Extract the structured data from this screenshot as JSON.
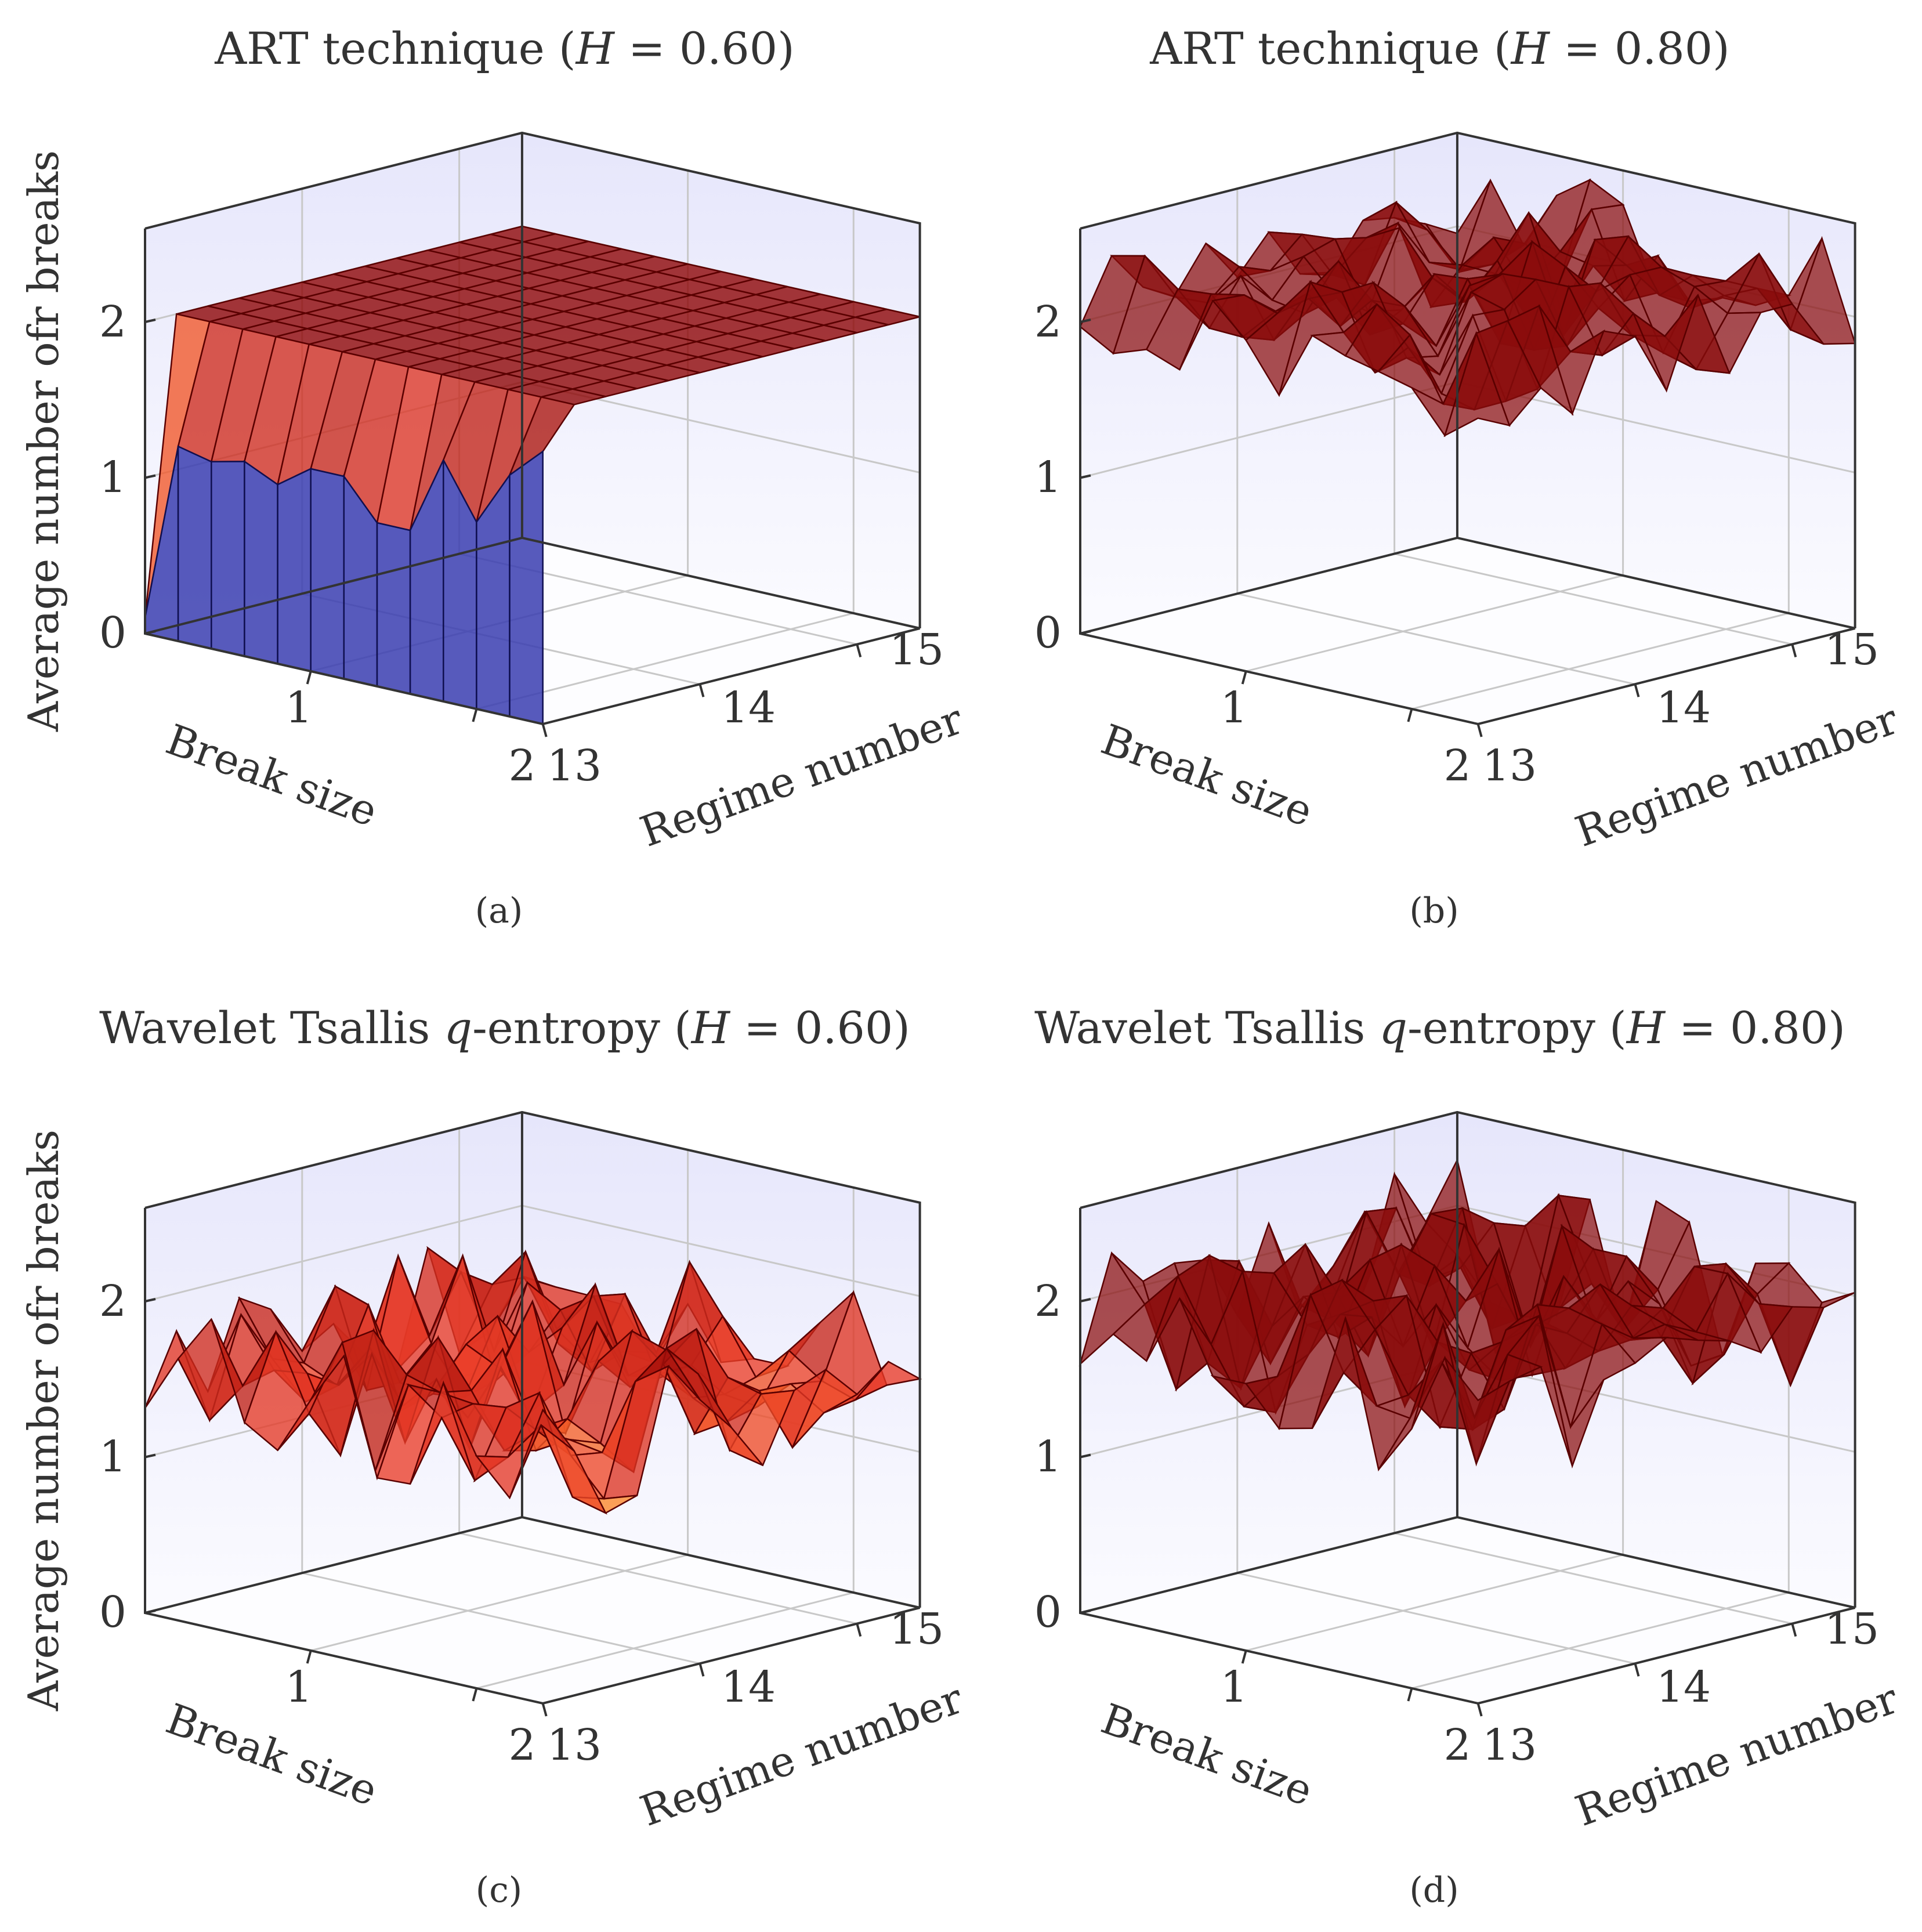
{
  "figure": {
    "ylabel": "Average number ofr breaks",
    "xlabel": "Break size",
    "zlabel": "Regime number"
  },
  "chart_data": [
    {
      "type": "surface3d",
      "title": "ART technique (H = 0.60)",
      "title_plain": "ART technique (",
      "title_h": "H",
      "title_value": " = 0.60)",
      "caption": "(a)",
      "x_axis": {
        "label": "Break size",
        "range": [
          0,
          2.4
        ],
        "ticks": [
          1,
          2
        ],
        "tick_labels": [
          "1",
          "2"
        ]
      },
      "z_axis": {
        "label": "Regime number",
        "range": [
          13,
          15.4
        ],
        "ticks": [
          13,
          14,
          15
        ],
        "tick_labels": [
          "13",
          "14",
          "15"
        ]
      },
      "y_axis": {
        "label": "Average number ofr breaks",
        "range": [
          0,
          2.6
        ],
        "ticks": [
          0,
          1,
          2
        ],
        "tick_labels": [
          "0",
          "1",
          "2"
        ]
      },
      "surface": {
        "x": [
          0,
          0.2,
          0.4,
          0.6,
          0.8,
          1.0,
          1.2,
          1.4,
          1.6,
          1.8,
          2.0,
          2.2,
          2.4
        ],
        "z": [
          13.0,
          13.2,
          13.4,
          13.6,
          13.8,
          14.0,
          14.2,
          14.4,
          14.6,
          14.8,
          15.0,
          15.2,
          15.4
        ],
        "first_row_values": [
          0.1,
          1.25,
          1.2,
          1.25,
          1.15,
          1.3,
          1.3,
          1.05,
          1.05,
          1.55,
          1.2,
          1.55,
          1.75
        ],
        "plateau": 2.0,
        "colormap": "hot"
      }
    },
    {
      "type": "surface3d",
      "title": "ART technique (H = 0.80)",
      "title_plain": "ART technique (",
      "title_h": "H",
      "title_value": " = 0.80)",
      "caption": "(b)",
      "x_axis": {
        "label": "Break size",
        "range": [
          0,
          2.4
        ],
        "ticks": [
          1,
          2
        ],
        "tick_labels": [
          "1",
          "2"
        ]
      },
      "z_axis": {
        "label": "Regime number",
        "range": [
          13,
          15.4
        ],
        "ticks": [
          13,
          14,
          15
        ],
        "tick_labels": [
          "13",
          "14",
          "15"
        ]
      },
      "y_axis": {
        "label": "Average number ofr breaks",
        "range": [
          0,
          2.6
        ],
        "ticks": [
          0,
          1,
          2
        ],
        "tick_labels": [
          "0",
          "1",
          "2"
        ]
      },
      "surface": {
        "mean": 2.15,
        "spread": 0.35,
        "seed": 17,
        "colormap": "dark-red"
      }
    },
    {
      "type": "surface3d",
      "title": "Wavelet Tsallis q-entropy (H = 0.60)",
      "title_plain": "Wavelet Tsallis ",
      "title_q": "q",
      "title_mid": "-entropy (",
      "title_h": "H",
      "title_value": " = 0.60)",
      "caption": "(c)",
      "x_axis": {
        "label": "Break size",
        "range": [
          0,
          2.4
        ],
        "ticks": [
          1,
          2
        ],
        "tick_labels": [
          "1",
          "2"
        ]
      },
      "z_axis": {
        "label": "Regime number",
        "range": [
          13,
          15.4
        ],
        "ticks": [
          13,
          14,
          15
        ],
        "tick_labels": [
          "13",
          "14",
          "15"
        ]
      },
      "y_axis": {
        "label": "Average number ofr breaks",
        "range": [
          0,
          2.6
        ],
        "ticks": [
          0,
          1,
          2
        ],
        "tick_labels": [
          "0",
          "1",
          "2"
        ]
      },
      "surface": {
        "mean": 1.55,
        "spread": 0.45,
        "seed": 5,
        "colormap": "hot"
      }
    },
    {
      "type": "surface3d",
      "title": "Wavelet Tsallis q-entropy (H = 0.80)",
      "title_plain": "Wavelet Tsallis ",
      "title_q": "q",
      "title_mid": "-entropy (",
      "title_h": "H",
      "title_value": " = 0.80)",
      "caption": "(d)",
      "x_axis": {
        "label": "Break size",
        "range": [
          0,
          2.4
        ],
        "ticks": [
          1,
          2
        ],
        "tick_labels": [
          "1",
          "2"
        ]
      },
      "z_axis": {
        "label": "Regime number",
        "range": [
          13,
          15.4
        ],
        "ticks": [
          13,
          14,
          15
        ],
        "tick_labels": [
          "13",
          "14",
          "15"
        ]
      },
      "y_axis": {
        "label": "Average number ofr breaks",
        "range": [
          0,
          2.6
        ],
        "ticks": [
          0,
          1,
          2
        ],
        "tick_labels": [
          "0",
          "1",
          "2"
        ]
      },
      "surface": {
        "mean": 1.85,
        "spread": 0.5,
        "seed": 29,
        "colormap": "dark-red"
      }
    }
  ]
}
